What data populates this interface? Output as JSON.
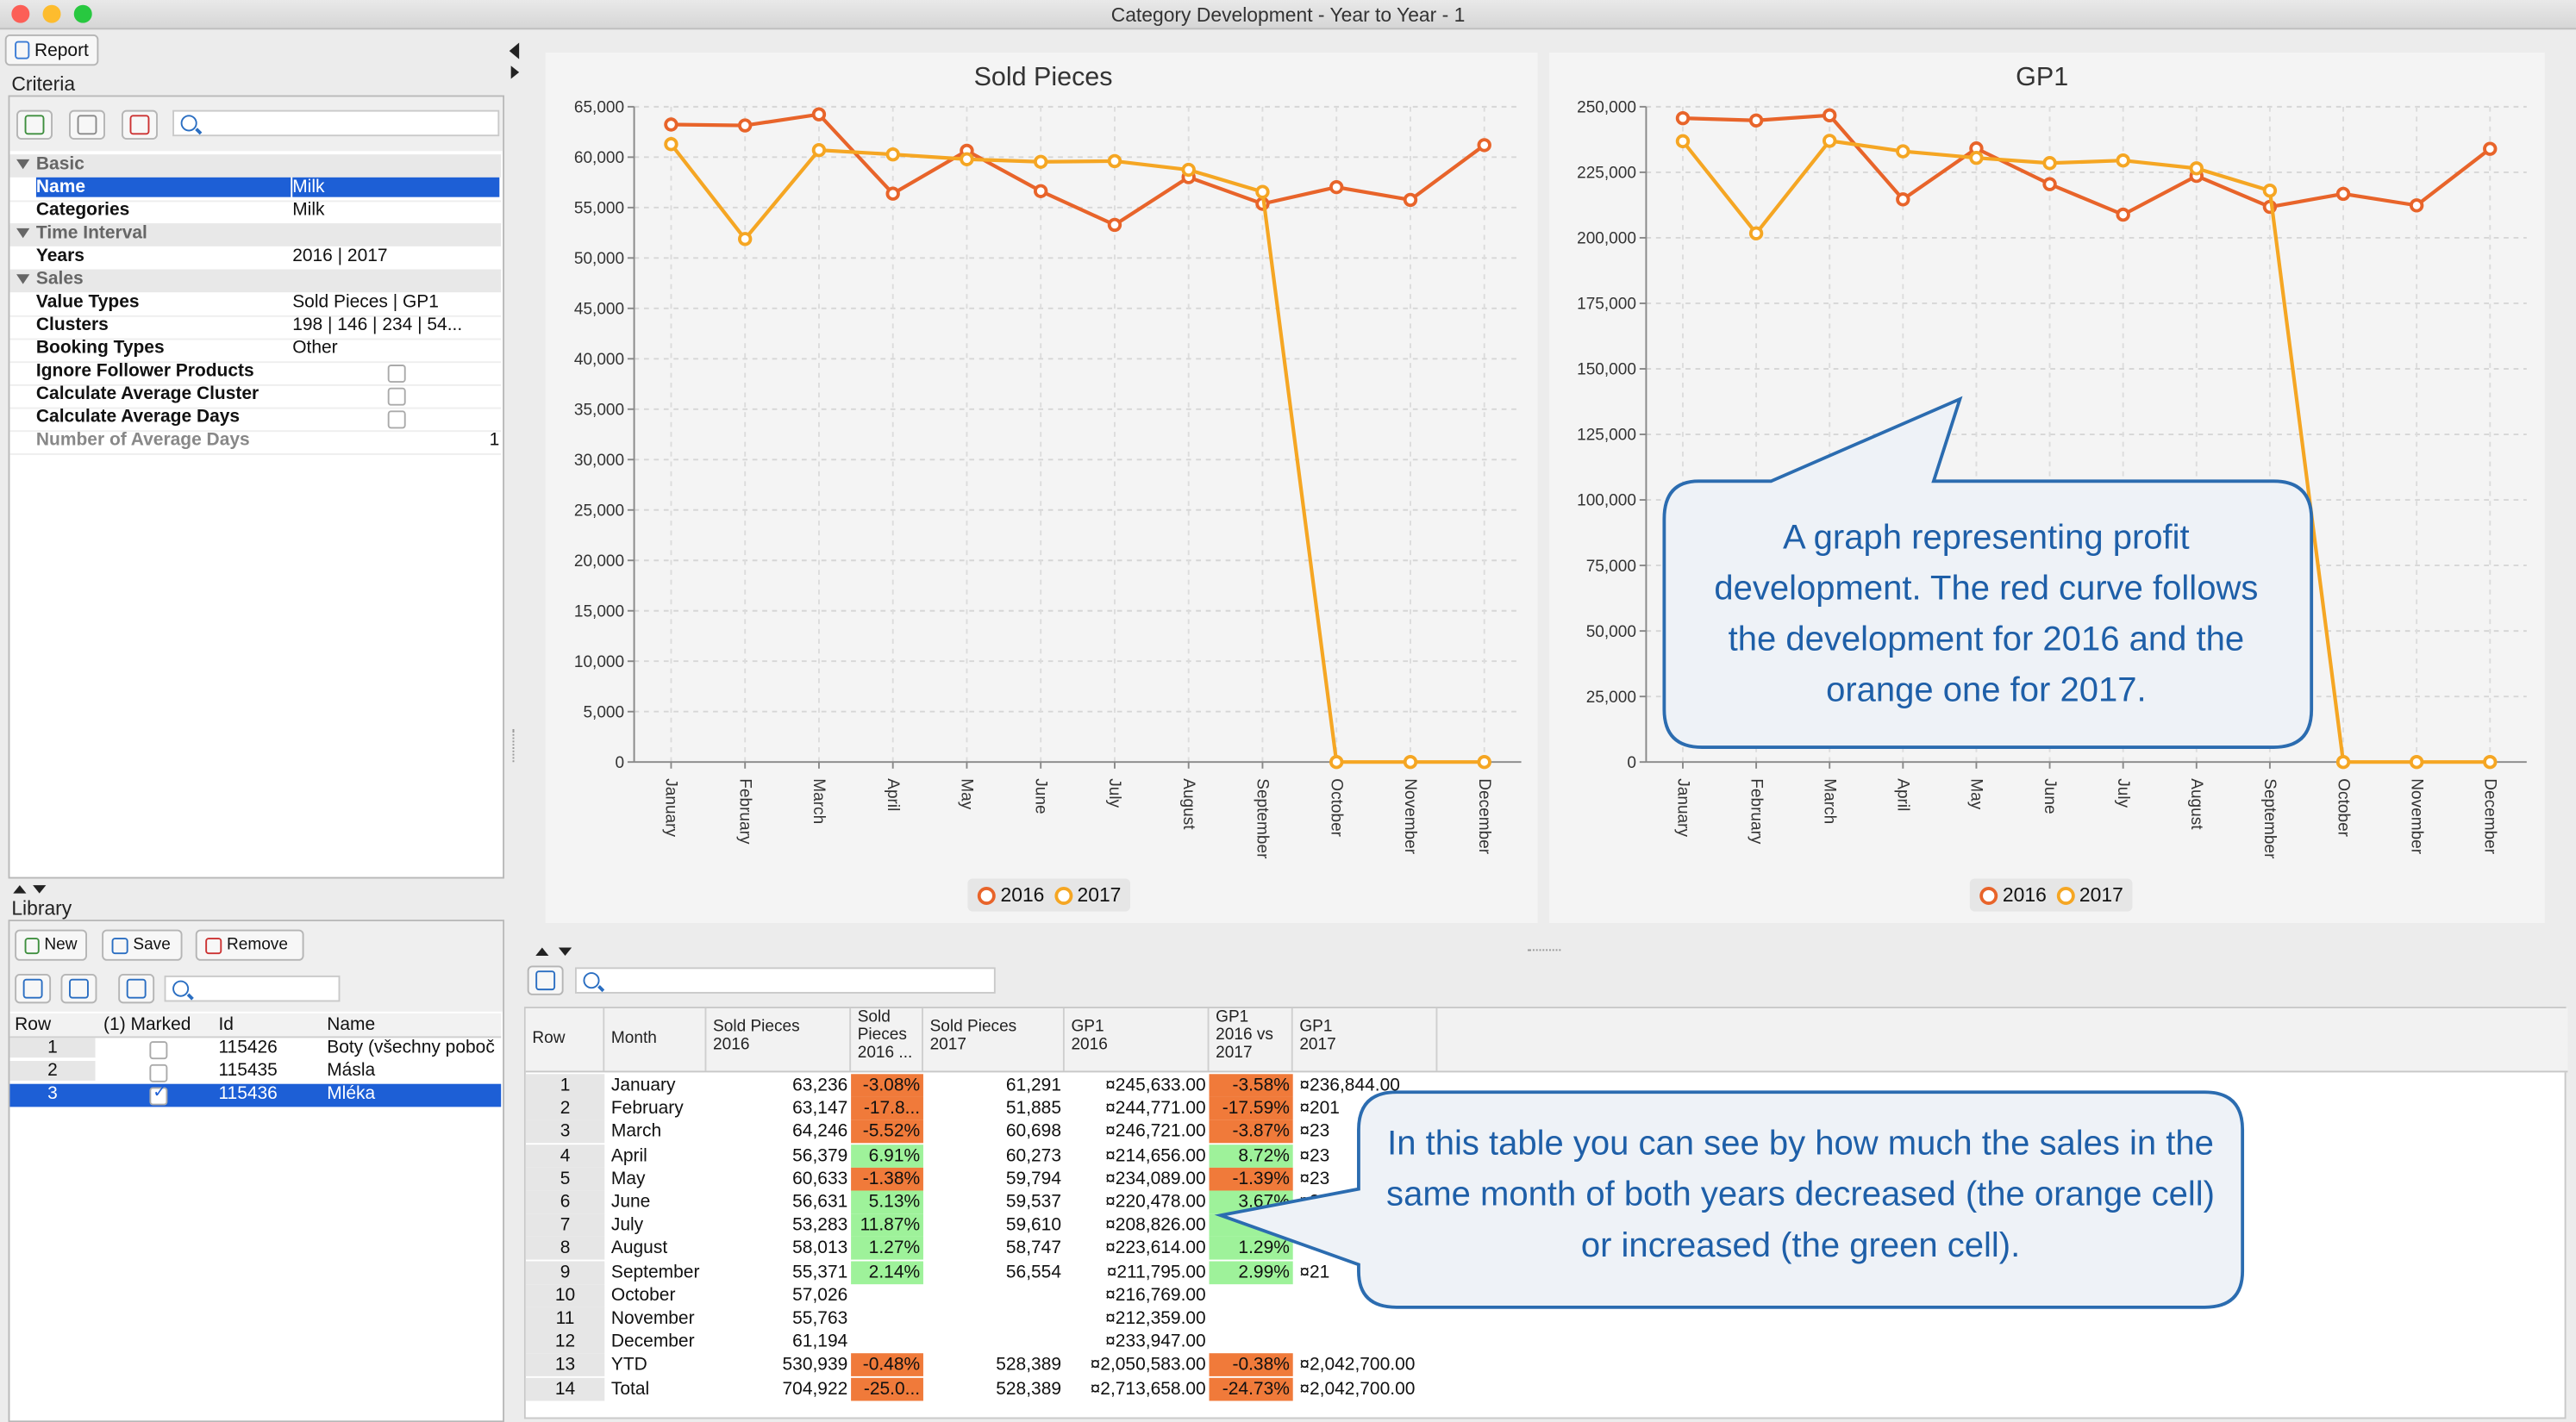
{
  "window": {
    "title": "Category Development - Year to Year - 1"
  },
  "toolbar": {
    "report_label": "Report"
  },
  "criteria": {
    "label": "Criteria",
    "search_placeholder": "",
    "groups": [
      {
        "name": "Basic",
        "rows": [
          {
            "key": "Name",
            "value": "Milk",
            "selected": true
          },
          {
            "key": "Categories",
            "value": "Milk"
          }
        ]
      },
      {
        "name": "Time Interval",
        "rows": [
          {
            "key": "Years",
            "value": "2016 | 2017"
          }
        ]
      },
      {
        "name": "Sales",
        "rows": [
          {
            "key": "Value Types",
            "value": "Sold Pieces | GP1"
          },
          {
            "key": "Clusters",
            "value": "198 | 146 | 234 | 54..."
          },
          {
            "key": "Booking Types",
            "value": "Other"
          },
          {
            "key": "Ignore Follower Products",
            "value": ""
          },
          {
            "key": "Calculate Average Cluster",
            "value": ""
          },
          {
            "key": "Calculate Average Days",
            "value": ""
          },
          {
            "key": "Number of Average Days",
            "value": "1"
          }
        ]
      }
    ]
  },
  "library": {
    "label": "Library",
    "new_label": "New",
    "save_label": "Save",
    "remove_label": "Remove",
    "columns": [
      "Row",
      "(1) Marked",
      "Id",
      "Name"
    ],
    "rows": [
      {
        "row": "1",
        "marked": false,
        "id": "115426",
        "name": "Boty (všechny poboč"
      },
      {
        "row": "2",
        "marked": false,
        "id": "115435",
        "name": "Másla"
      },
      {
        "row": "3",
        "marked": true,
        "id": "115436",
        "name": "Mléka"
      }
    ]
  },
  "chart_data": [
    {
      "type": "line",
      "title": "Sold Pieces",
      "categories": [
        "January",
        "February",
        "March",
        "April",
        "May",
        "June",
        "July",
        "August",
        "September",
        "October",
        "November",
        "December"
      ],
      "ylim": [
        0,
        65000
      ],
      "yticks": [
        "0",
        "5,000",
        "10,000",
        "15,000",
        "20,000",
        "25,000",
        "30,000",
        "35,000",
        "40,000",
        "45,000",
        "50,000",
        "55,000",
        "60,000",
        "65,000"
      ],
      "grid": true,
      "legend": "bottom",
      "series": [
        {
          "name": "2016",
          "color": "#e8642a",
          "values": [
            63236,
            63147,
            64246,
            56379,
            60633,
            56631,
            53283,
            58013,
            55371,
            57026,
            55763,
            61194
          ]
        },
        {
          "name": "2017",
          "color": "#f5a623",
          "values": [
            61291,
            51885,
            60698,
            60273,
            59794,
            59537,
            59610,
            58747,
            56554,
            0,
            0,
            0
          ]
        }
      ]
    },
    {
      "type": "line",
      "title": "GP1",
      "categories": [
        "January",
        "February",
        "March",
        "April",
        "May",
        "June",
        "July",
        "August",
        "September",
        "October",
        "November",
        "December"
      ],
      "ylim": [
        0,
        250000
      ],
      "yticks": [
        "0",
        "25,000",
        "50,000",
        "75,000",
        "100,000",
        "125,000",
        "150,000",
        "175,000",
        "200,000",
        "225,000",
        "250,000"
      ],
      "grid": true,
      "legend": "bottom",
      "series": [
        {
          "name": "2016",
          "color": "#e8642a",
          "values": [
            245633,
            244771,
            246721,
            214656,
            234089,
            220478,
            208826,
            223614,
            211795,
            216769,
            212359,
            233947
          ]
        },
        {
          "name": "2017",
          "color": "#f5a623",
          "values": [
            236844,
            201700,
            237000,
            233000,
            230500,
            228500,
            229500,
            226500,
            218000,
            0,
            0,
            0
          ]
        }
      ]
    }
  ],
  "table": {
    "columns": [
      {
        "l1": "Row",
        "l2": "",
        "l3": ""
      },
      {
        "l1": "Month",
        "l2": "",
        "l3": ""
      },
      {
        "l1": "Sold Pieces",
        "l2": "2016",
        "l3": ""
      },
      {
        "l1": "Sold",
        "l2": "Pieces",
        "l3": "2016 ..."
      },
      {
        "l1": "Sold Pieces",
        "l2": "2017",
        "l3": ""
      },
      {
        "l1": "GP1",
        "l2": "2016",
        "l3": ""
      },
      {
        "l1": "GP1",
        "l2": "2016 vs",
        "l3": "2017"
      },
      {
        "l1": "GP1",
        "l2": "2017",
        "l3": ""
      }
    ],
    "rows": [
      {
        "row": "1",
        "month": "January",
        "sp16": "63,236",
        "spd": "-3.08%",
        "spds": "neg",
        "sp17": "61,291",
        "gp16": "¤245,633.00",
        "gpd": "-3.58%",
        "gpds": "neg",
        "gp17": "¤236,844.00"
      },
      {
        "row": "2",
        "month": "February",
        "sp16": "63,147",
        "spd": "-17.8...",
        "spds": "neg",
        "sp17": "51,885",
        "gp16": "¤244,771.00",
        "gpd": "-17.59%",
        "gpds": "neg",
        "gp17": "¤201"
      },
      {
        "row": "3",
        "month": "March",
        "sp16": "64,246",
        "spd": "-5.52%",
        "spds": "neg",
        "sp17": "60,698",
        "gp16": "¤246,721.00",
        "gpd": "-3.87%",
        "gpds": "neg",
        "gp17": "¤23"
      },
      {
        "row": "4",
        "month": "April",
        "sp16": "56,379",
        "spd": "6.91%",
        "spds": "pos",
        "sp17": "60,273",
        "gp16": "¤214,656.00",
        "gpd": "8.72%",
        "gpds": "pos",
        "gp17": "¤23"
      },
      {
        "row": "5",
        "month": "May",
        "sp16": "60,633",
        "spd": "-1.38%",
        "spds": "neg",
        "sp17": "59,794",
        "gp16": "¤234,089.00",
        "gpd": "-1.39%",
        "gpds": "neg",
        "gp17": "¤23"
      },
      {
        "row": "6",
        "month": "June",
        "sp16": "56,631",
        "spd": "5.13%",
        "spds": "pos",
        "sp17": "59,537",
        "gp16": "¤220,478.00",
        "gpd": "3.67%",
        "gpds": "pos",
        "gp17": "¤22"
      },
      {
        "row": "7",
        "month": "July",
        "sp16": "53,283",
        "spd": "11.87%",
        "spds": "pos",
        "sp17": "59,610",
        "gp16": "¤208,826.00",
        "gpd": "9.",
        "gpds": "pos",
        "gp17": ""
      },
      {
        "row": "8",
        "month": "August",
        "sp16": "58,013",
        "spd": "1.27%",
        "spds": "pos",
        "sp17": "58,747",
        "gp16": "¤223,614.00",
        "gpd": "1.29%",
        "gpds": "pos",
        "gp17": ""
      },
      {
        "row": "9",
        "month": "September",
        "sp16": "55,371",
        "spd": "2.14%",
        "spds": "pos",
        "sp17": "56,554",
        "gp16": "¤211,795.00",
        "gpd": "2.99%",
        "gpds": "pos",
        "gp17": "¤21"
      },
      {
        "row": "10",
        "month": "October",
        "sp16": "57,026",
        "spd": "",
        "spds": "",
        "sp17": "",
        "gp16": "¤216,769.00",
        "gpd": "",
        "gpds": "",
        "gp17": ""
      },
      {
        "row": "11",
        "month": "November",
        "sp16": "55,763",
        "spd": "",
        "spds": "",
        "sp17": "",
        "gp16": "¤212,359.00",
        "gpd": "",
        "gpds": "",
        "gp17": ""
      },
      {
        "row": "12",
        "month": "December",
        "sp16": "61,194",
        "spd": "",
        "spds": "",
        "sp17": "",
        "gp16": "¤233,947.00",
        "gpd": "",
        "gpds": "",
        "gp17": ""
      },
      {
        "row": "13",
        "month": "YTD",
        "sp16": "530,939",
        "spd": "-0.48%",
        "spds": "neg",
        "sp17": "528,389",
        "gp16": "¤2,050,583.00",
        "gpd": "-0.38%",
        "gpds": "neg",
        "gp17": "¤2,042,700.00"
      },
      {
        "row": "14",
        "month": "Total",
        "sp16": "704,922",
        "spd": "-25.0...",
        "spds": "neg",
        "sp17": "528,389",
        "gp16": "¤2,713,658.00",
        "gpd": "-24.73%",
        "gpds": "neg",
        "gp17": "¤2,042,700.00"
      }
    ]
  },
  "callouts": {
    "graph": "A graph representing profit development. The red curve follows the development for 2016 and the orange one for 2017.",
    "table": "In this table you can see by how much the sales in the same month of both years decreased (the orange cell) or increased (the green cell)."
  },
  "colors": {
    "accent": "#1d5fd6",
    "callout_border": "#2b6cb0",
    "callout_text": "#1e5fa8",
    "neg_cell": "#f07a3a",
    "pos_cell": "#9ef29a"
  }
}
